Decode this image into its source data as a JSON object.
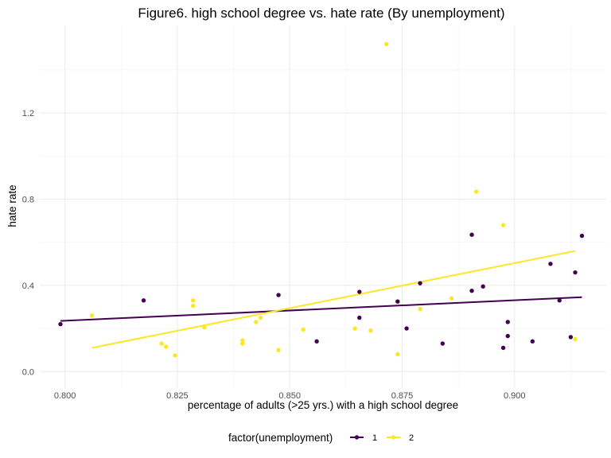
{
  "chart_data": {
    "type": "scatter",
    "title": "Figure6. high school degree vs. hate rate (By unemployment)",
    "xlabel": "percentage of adults (>25 yrs.) with a high school degree",
    "ylabel": "hate rate",
    "xlim": [
      0.7944,
      0.9204
    ],
    "ylim": [
      -0.0765,
      1.6065
    ],
    "x_ticks": [
      0.8,
      0.825,
      0.85,
      0.875,
      0.9
    ],
    "x_tick_labels": [
      "0.800",
      "0.825",
      "0.850",
      "0.875",
      "0.900"
    ],
    "y_ticks": [
      0,
      0.4,
      0.8,
      1.2
    ],
    "y_tick_labels": [
      "0.0",
      "0.4",
      "0.8",
      "1.2"
    ],
    "grid": true,
    "legend": {
      "title": "factor(unemployment)",
      "position": "bottom"
    },
    "series": [
      {
        "name": "1",
        "color": "#440154",
        "points": [
          [
            0.799,
            0.22
          ],
          [
            0.8175,
            0.33
          ],
          [
            0.8475,
            0.355
          ],
          [
            0.856,
            0.14
          ],
          [
            0.8655,
            0.37
          ],
          [
            0.8655,
            0.25
          ],
          [
            0.874,
            0.325
          ],
          [
            0.876,
            0.2
          ],
          [
            0.879,
            0.41
          ],
          [
            0.884,
            0.13
          ],
          [
            0.8905,
            0.635
          ],
          [
            0.8905,
            0.375
          ],
          [
            0.893,
            0.395
          ],
          [
            0.8975,
            0.11
          ],
          [
            0.8985,
            0.23
          ],
          [
            0.8985,
            0.165
          ],
          [
            0.904,
            0.14
          ],
          [
            0.908,
            0.5
          ],
          [
            0.91,
            0.33
          ],
          [
            0.9125,
            0.16
          ],
          [
            0.9135,
            0.46
          ],
          [
            0.915,
            0.63
          ]
        ],
        "trend": {
          "x": [
            0.799,
            0.915
          ],
          "y": [
            0.235,
            0.345
          ]
        }
      },
      {
        "name": "2",
        "color": "#FDE725",
        "points": [
          [
            0.806,
            0.26
          ],
          [
            0.8215,
            0.13
          ],
          [
            0.8225,
            0.115
          ],
          [
            0.8245,
            0.075
          ],
          [
            0.8285,
            0.33
          ],
          [
            0.8285,
            0.305
          ],
          [
            0.831,
            0.205
          ],
          [
            0.8395,
            0.145
          ],
          [
            0.8395,
            0.13
          ],
          [
            0.8425,
            0.23
          ],
          [
            0.8435,
            0.25
          ],
          [
            0.8475,
            0.1
          ],
          [
            0.853,
            0.195
          ],
          [
            0.8645,
            0.2
          ],
          [
            0.868,
            0.19
          ],
          [
            0.8715,
            1.52
          ],
          [
            0.874,
            0.08
          ],
          [
            0.879,
            0.29
          ],
          [
            0.886,
            0.34
          ],
          [
            0.8915,
            0.835
          ],
          [
            0.8975,
            0.68
          ],
          [
            0.9135,
            0.15
          ]
        ],
        "trend": {
          "x": [
            0.806,
            0.9135
          ],
          "y": [
            0.11,
            0.56
          ]
        }
      }
    ]
  }
}
